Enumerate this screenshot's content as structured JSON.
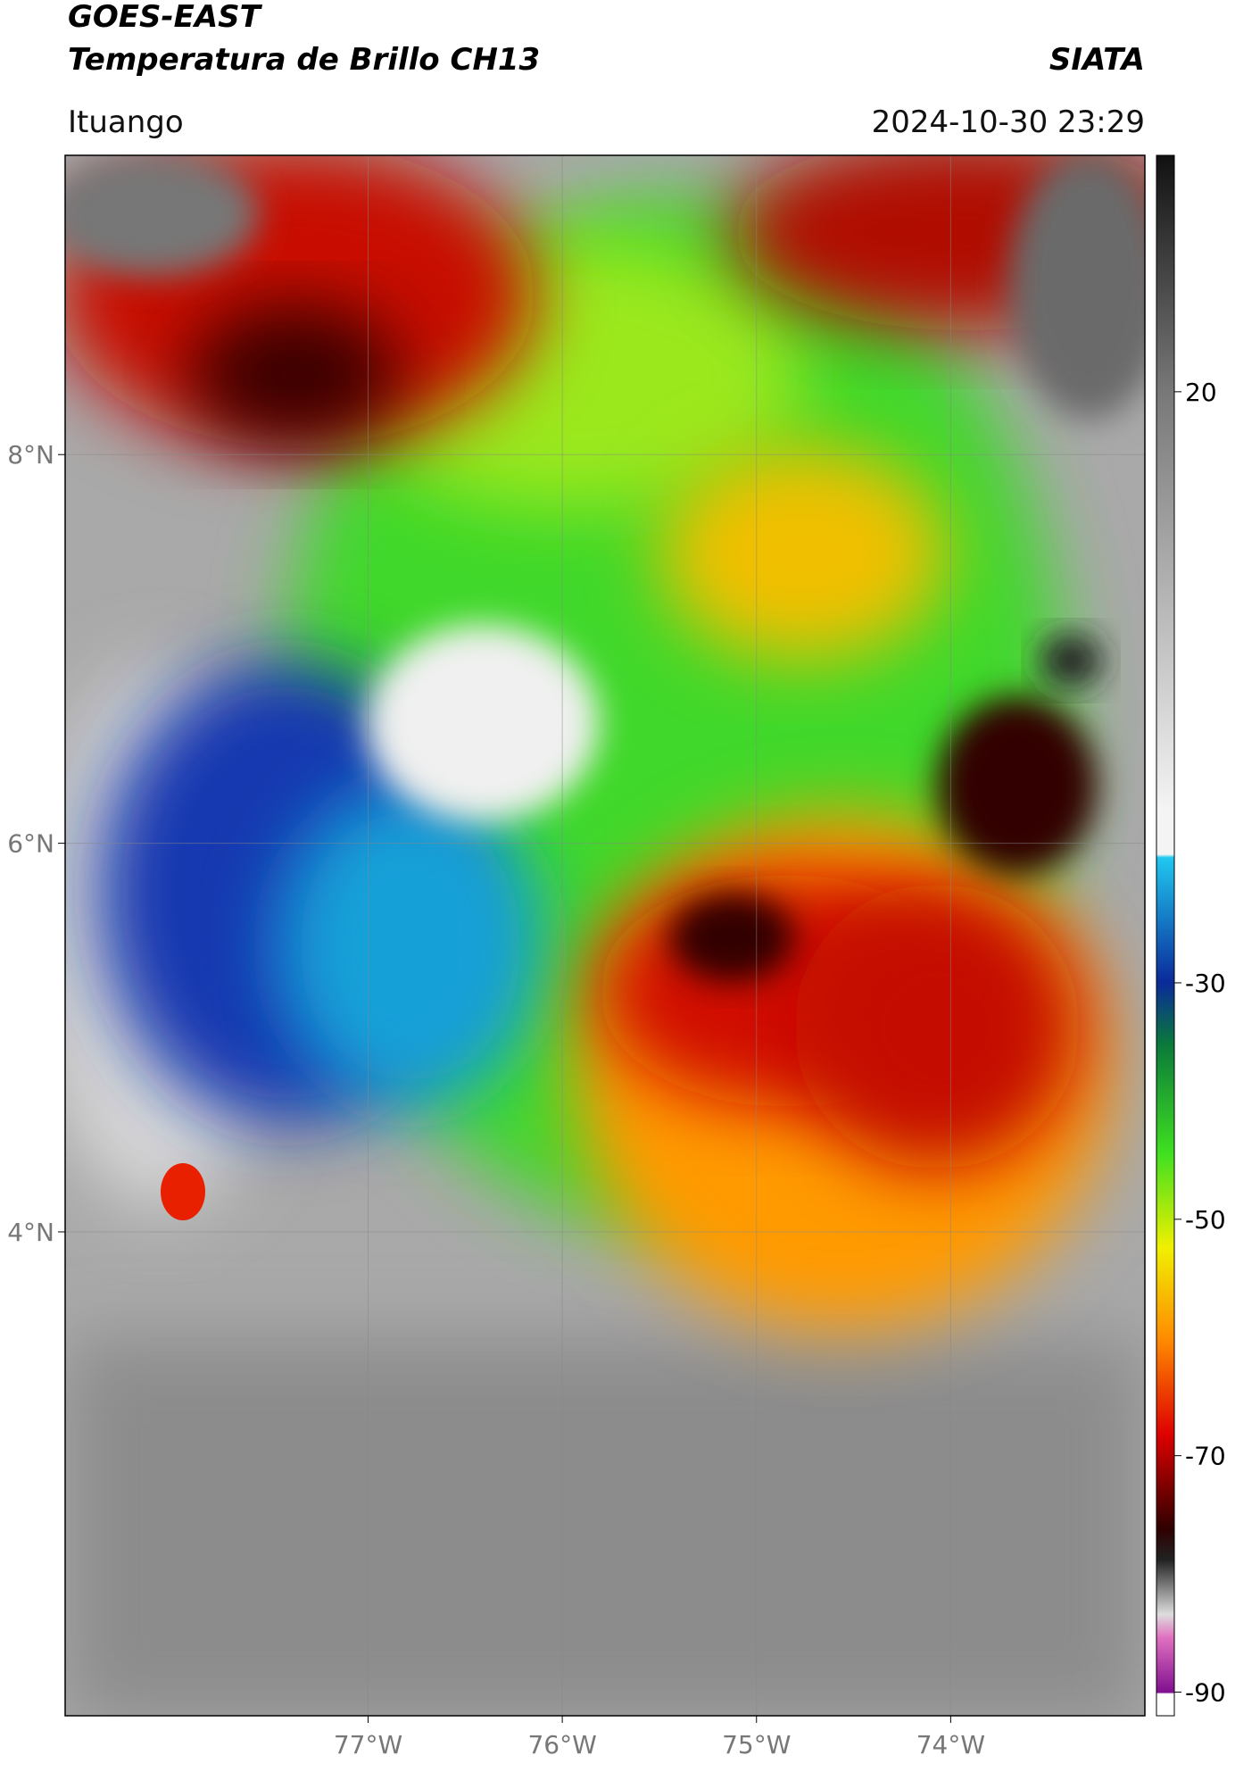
{
  "header": {
    "title_line1": "GOES-EAST",
    "title_line2": "Temperatura de Brillo CH13",
    "agency": "SIATA",
    "location": "Ituango",
    "timestamp": "2024-10-30 23:29"
  },
  "map": {
    "lon_range": [
      -78.56,
      -73.0
    ],
    "lat_range": [
      1.51,
      9.54
    ],
    "lon_ticks": [
      {
        "value": -77,
        "label": "77°W"
      },
      {
        "value": -76,
        "label": "76°W"
      },
      {
        "value": -75,
        "label": "75°W"
      },
      {
        "value": -74,
        "label": "74°W"
      }
    ],
    "lat_ticks": [
      {
        "value": 8,
        "label": "8°N"
      },
      {
        "value": 6,
        "label": "6°N"
      },
      {
        "value": 4,
        "label": "4°N"
      }
    ],
    "grid": true
  },
  "colorbar": {
    "range": [
      -92,
      40
    ],
    "ticks": [
      20,
      -30,
      -50,
      -70,
      -90
    ]
  }
}
